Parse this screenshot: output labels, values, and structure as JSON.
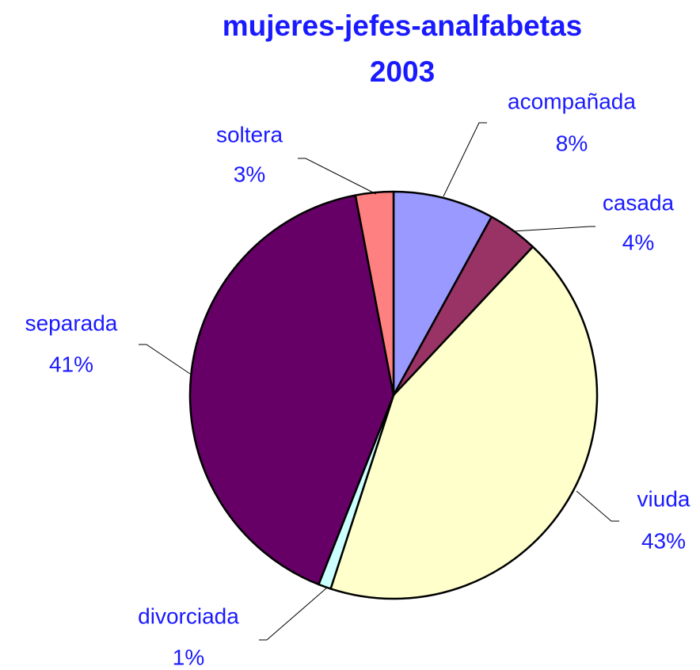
{
  "chart_data": {
    "type": "pie",
    "title": "mujeres-jefes-analfabetas",
    "subtitle": "2003",
    "categories": [
      "acompañada",
      "casada",
      "viuda",
      "divorciada",
      "separada",
      "soltera"
    ],
    "values": [
      8,
      4,
      43,
      1,
      41,
      3
    ],
    "value_labels": [
      "8%",
      "4%",
      "43%",
      "1%",
      "41%",
      "3%"
    ],
    "colors": [
      "#9999ff",
      "#993366",
      "#ffffcc",
      "#ccffff",
      "#660066",
      "#ff8080"
    ]
  }
}
